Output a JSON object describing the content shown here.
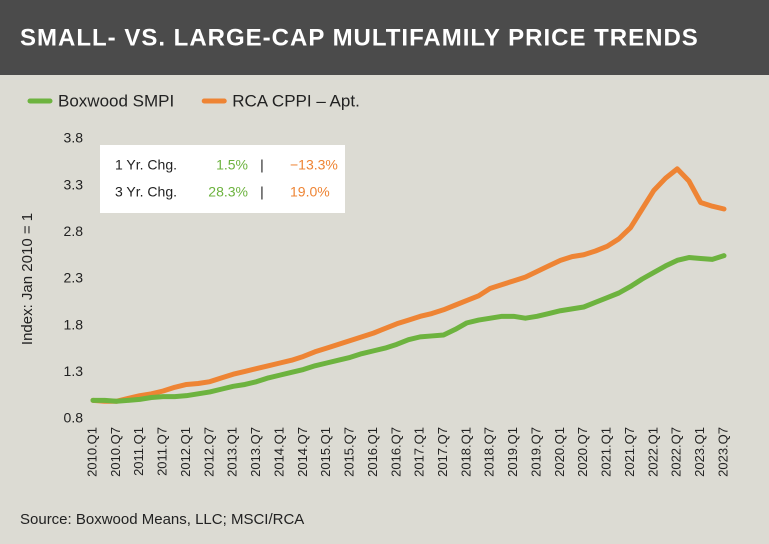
{
  "chart_data": {
    "type": "line",
    "title": "SMALL- VS. LARGE-CAP MULTIFAMILY PRICE TRENDS",
    "y_label": "Index: Jan 2010 = 1",
    "source": "Source: Boxwood Means, LLC; MSCI/RCA",
    "categories": [
      "2010.Q1",
      null,
      "2010.Q7",
      null,
      "2011.Q1",
      null,
      "2011.Q7",
      null,
      "2012.Q1",
      null,
      "2012.Q7",
      null,
      "2013.Q1",
      null,
      "2013.Q7",
      null,
      "2014.Q1",
      null,
      "2014.Q7",
      null,
      "2015.Q1",
      null,
      "2015.Q7",
      null,
      "2016.Q1",
      null,
      "2016.Q7",
      null,
      "2017.Q1",
      null,
      "2017.Q7",
      null,
      "2018.Q1",
      null,
      "2018.Q7",
      null,
      "2019.Q1",
      null,
      "2019.Q7",
      null,
      "2020.Q1",
      null,
      "2020.Q7",
      null,
      "2021.Q1",
      null,
      "2021.Q7",
      null,
      "2022.Q1",
      null,
      "2022.Q7",
      null,
      "2023.Q1",
      null,
      "2023.Q7"
    ],
    "series": [
      {
        "name": "Boxwood SMPI",
        "color": "#6db33f",
        "values": [
          1.0,
          1.0,
          0.99,
          1.0,
          1.01,
          1.03,
          1.04,
          1.04,
          1.05,
          1.07,
          1.09,
          1.12,
          1.15,
          1.17,
          1.2,
          1.24,
          1.27,
          1.3,
          1.33,
          1.37,
          1.4,
          1.43,
          1.46,
          1.5,
          1.53,
          1.56,
          1.6,
          1.65,
          1.68,
          1.69,
          1.7,
          1.76,
          1.83,
          1.86,
          1.88,
          1.9,
          1.9,
          1.88,
          1.9,
          1.93,
          1.96,
          1.98,
          2.0,
          2.05,
          2.1,
          2.15,
          2.22,
          2.3,
          2.37,
          2.44,
          2.5,
          2.53,
          2.52,
          2.51,
          2.55
        ]
      },
      {
        "name": "RCA CPPI – Apt.",
        "color": "#ee8434",
        "values": [
          1.0,
          0.99,
          0.99,
          1.02,
          1.05,
          1.07,
          1.1,
          1.14,
          1.17,
          1.18,
          1.2,
          1.24,
          1.28,
          1.31,
          1.34,
          1.37,
          1.4,
          1.43,
          1.47,
          1.52,
          1.56,
          1.6,
          1.64,
          1.68,
          1.72,
          1.77,
          1.82,
          1.86,
          1.9,
          1.93,
          1.97,
          2.02,
          2.07,
          2.12,
          2.2,
          2.24,
          2.28,
          2.32,
          2.38,
          2.44,
          2.5,
          2.54,
          2.56,
          2.6,
          2.65,
          2.73,
          2.85,
          3.05,
          3.25,
          3.38,
          3.48,
          3.35,
          3.12,
          3.08,
          3.05
        ]
      }
    ],
    "ylim": [
      0.8,
      3.8
    ],
    "yticks": [
      0.8,
      1.3,
      1.8,
      2.3,
      2.8,
      3.3,
      3.8
    ],
    "legend": "top-left",
    "annotations": [
      [
        "1 Yr. Chg.",
        "1.5%",
        "|",
        "−13.3%"
      ],
      [
        "3 Yr. Chg.",
        "28.3%",
        "|",
        "19.0%"
      ]
    ]
  }
}
